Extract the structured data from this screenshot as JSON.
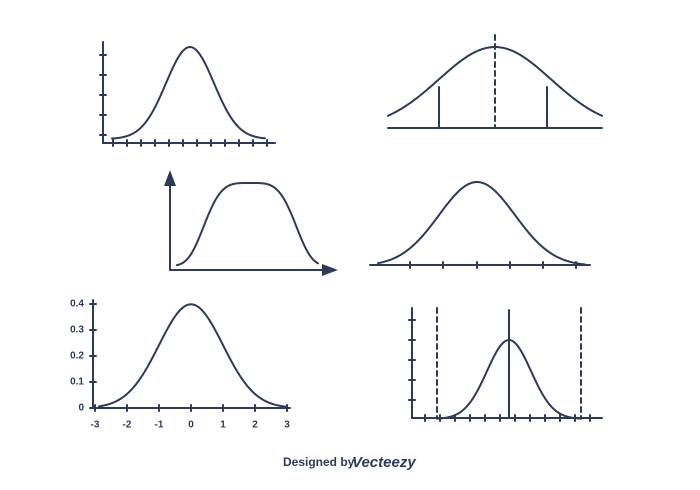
{
  "labeled_plot": {
    "yticks": [
      0.4,
      0.3,
      0.2,
      0.1,
      0
    ],
    "xticks": [
      -3,
      -2,
      -1,
      0,
      1,
      2,
      3
    ]
  },
  "credit": {
    "prefix": "Designed by",
    "brand": "Vecteezy"
  }
}
